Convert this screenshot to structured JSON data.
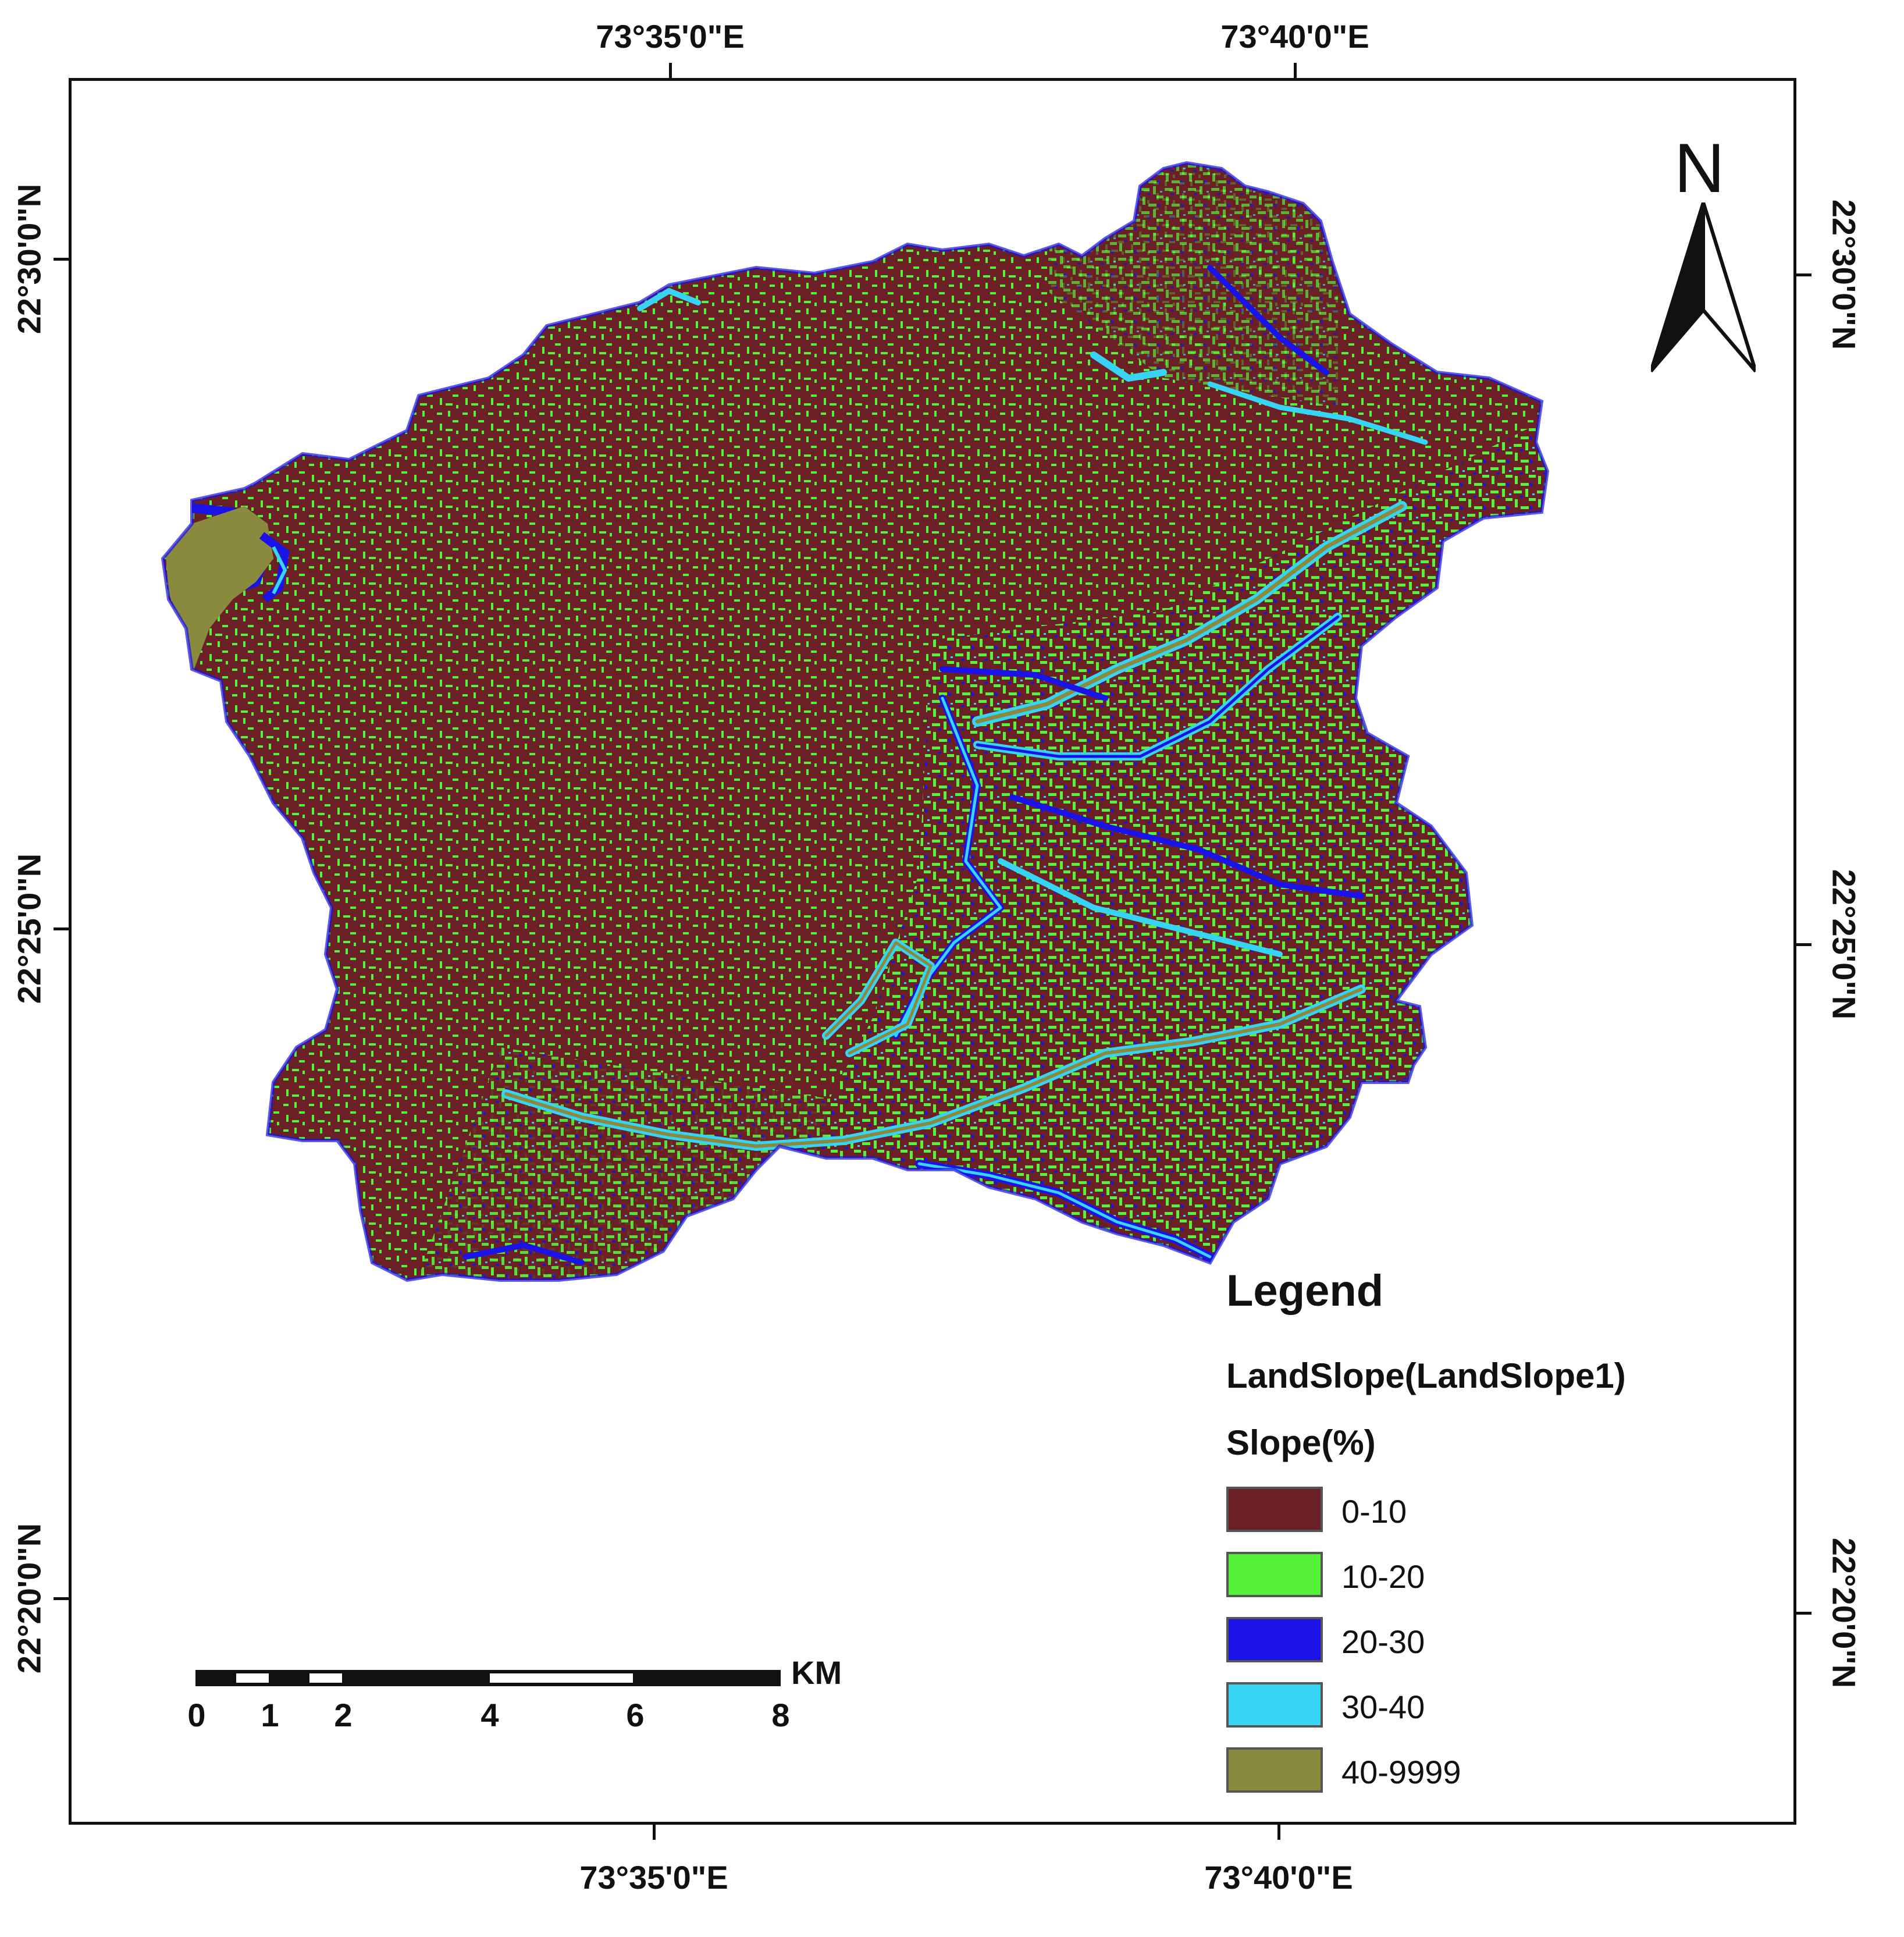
{
  "map": {
    "top_axis_labels": [
      "73°35'0\"E",
      "73°40'0\"E"
    ],
    "bottom_axis_labels": [
      "73°35'0\"E",
      "73°40'0\"E"
    ],
    "left_axis_labels": [
      "22°30'0\"N",
      "22°25'0\"N",
      "22°20'0\"N"
    ],
    "right_axis_labels": [
      "22°30'0\"N",
      "22°25'0\"N",
      "22°20'0\"N"
    ]
  },
  "north_arrow": {
    "label": "N",
    "icon": "north-arrow-icon"
  },
  "legend": {
    "title": "Legend",
    "layer_name": "LandSlope(LandSlope1)",
    "field_name": "Slope(%)",
    "items": [
      {
        "label": "0-10",
        "color": "#6a2024"
      },
      {
        "label": "10-20",
        "color": "#55f23c"
      },
      {
        "label": "20-30",
        "color": "#1a12e6"
      },
      {
        "label": "30-40",
        "color": "#37d4f4"
      },
      {
        "label": "40-9999",
        "color": "#8a8a3e"
      }
    ]
  },
  "scale_bar": {
    "unit": "KM",
    "labels": [
      "0",
      "1",
      "2",
      "4",
      "6",
      "8"
    ]
  }
}
